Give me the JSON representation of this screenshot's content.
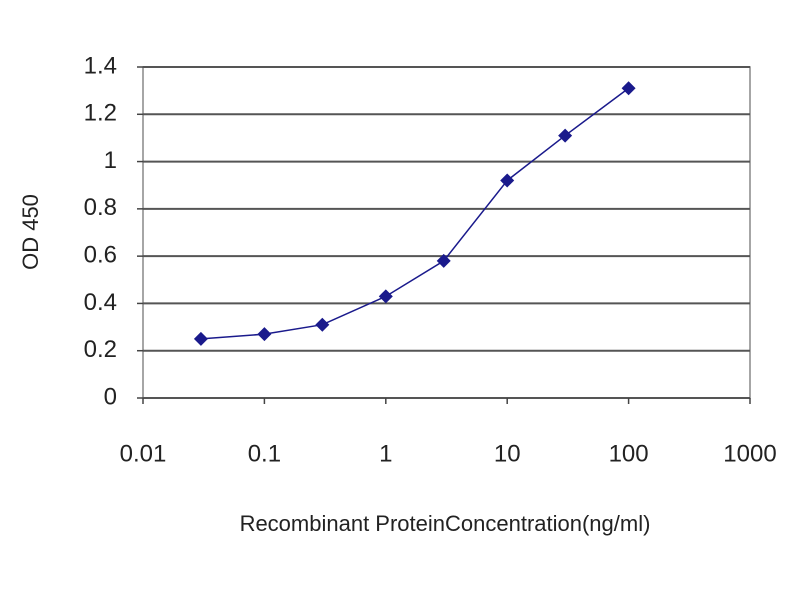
{
  "chart_data": {
    "type": "line",
    "x_label": "Recombinant ProteinConcentration(ng/ml)",
    "y_label": "OD 450",
    "x": [
      0.03,
      0.1,
      0.3,
      1,
      3,
      10,
      30,
      100
    ],
    "values": [
      0.25,
      0.27,
      0.31,
      0.43,
      0.58,
      0.92,
      1.11,
      1.31
    ],
    "color": "#1a1a8c",
    "xscale": "log",
    "xlim": [
      0.01,
      1000
    ],
    "xticks": [
      0.01,
      0.1,
      1,
      10,
      100,
      1000
    ],
    "ylim": [
      0,
      1.4
    ],
    "yticks": [
      0,
      0.2,
      0.4,
      0.6,
      0.8,
      1,
      1.2,
      1.4
    ],
    "grid": true
  }
}
